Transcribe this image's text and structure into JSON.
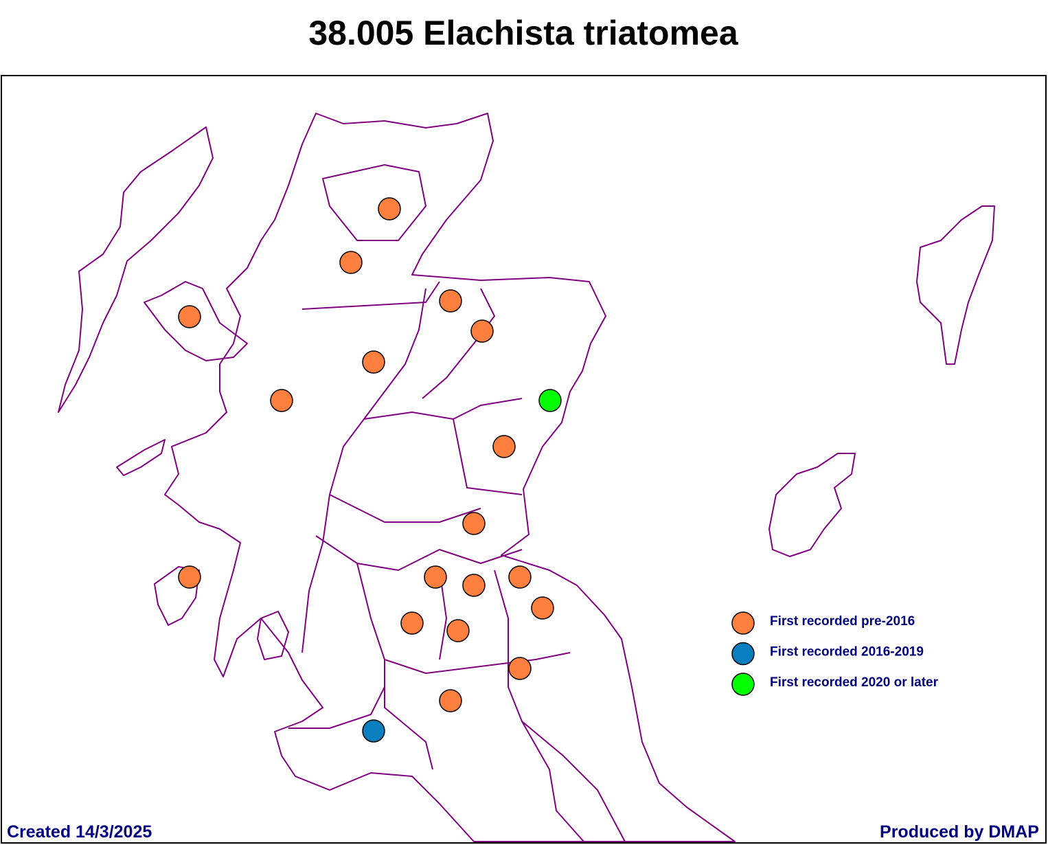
{
  "title": "38.005 Elachista triatomea",
  "legend": [
    {
      "label": "First recorded pre-2016",
      "color": "#ff7f3f"
    },
    {
      "label": "First recorded 2016-2019",
      "color": "#0a7fbf"
    },
    {
      "label": "First recorded 2020 or later",
      "color": "#00ff00"
    }
  ],
  "footer": {
    "created": "Created 14/3/2025",
    "producer": "Produced by DMAP"
  }
}
